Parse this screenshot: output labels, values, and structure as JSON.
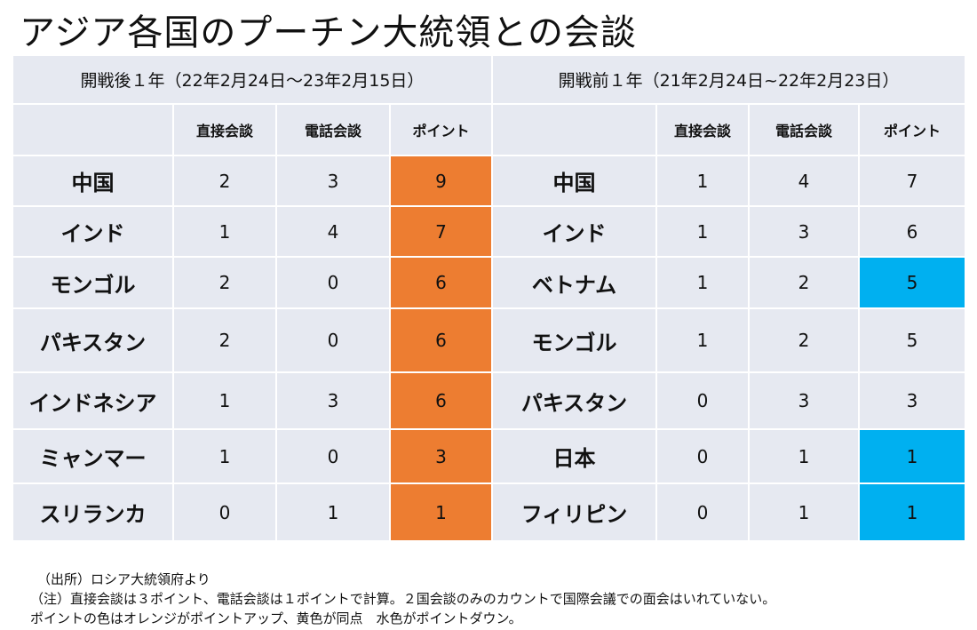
{
  "title": "アジア各国のプーチン大統領との会談",
  "left": {
    "period": "開戦後１年（22年2月24日～23年2月15日）",
    "headers": [
      "直接会談",
      "電話会談",
      "ポイント"
    ],
    "rows": [
      {
        "country": "中国",
        "direct": "2",
        "phone": "3",
        "points": "9"
      },
      {
        "country": "インド",
        "direct": "1",
        "phone": "4",
        "points": "7"
      },
      {
        "country": "モンゴル",
        "direct": "2",
        "phone": "0",
        "points": "6"
      },
      {
        "country": "パキスタン",
        "direct": "2",
        "phone": "0",
        "points": "6"
      },
      {
        "country": "インドネシア",
        "direct": "1",
        "phone": "3",
        "points": "6"
      },
      {
        "country": "ミャンマー",
        "direct": "1",
        "phone": "0",
        "points": "3"
      },
      {
        "country": "スリランカ",
        "direct": "0",
        "phone": "1",
        "points": "1"
      }
    ]
  },
  "right": {
    "period": "開戦前１年（21年2月24日~22年2月23日）",
    "headers": [
      "直接会談",
      "電話会談",
      "ポイント"
    ],
    "rows": [
      {
        "country": "中国",
        "direct": "1",
        "phone": "4",
        "points": "7"
      },
      {
        "country": "インド",
        "direct": "1",
        "phone": "3",
        "points": "6"
      },
      {
        "country": "ベトナム",
        "direct": "1",
        "phone": "2",
        "points": "5"
      },
      {
        "country": "モンゴル",
        "direct": "1",
        "phone": "2",
        "points": "5"
      },
      {
        "country": "パキスタン",
        "direct": "0",
        "phone": "3",
        "points": "3"
      },
      {
        "country": "日本",
        "direct": "0",
        "phone": "1",
        "points": "1"
      },
      {
        "country": "フィリピン",
        "direct": "0",
        "phone": "1",
        "points": "1"
      }
    ]
  },
  "colors": {
    "point_up": "#ed7d31",
    "point_down": "#00b0f0",
    "cell_bg": "#e6e9f1"
  },
  "notes": [
    "（出所）ロシア大統領府より",
    "（注）直接会談は３ポイント、電話会談は１ポイントで計算。２国会談のみのカウントで国際会議での面会はいれていない。",
    "ポイントの色はオレンジがポイントアップ、黄色が同点　水色がポイントダウン。"
  ]
}
